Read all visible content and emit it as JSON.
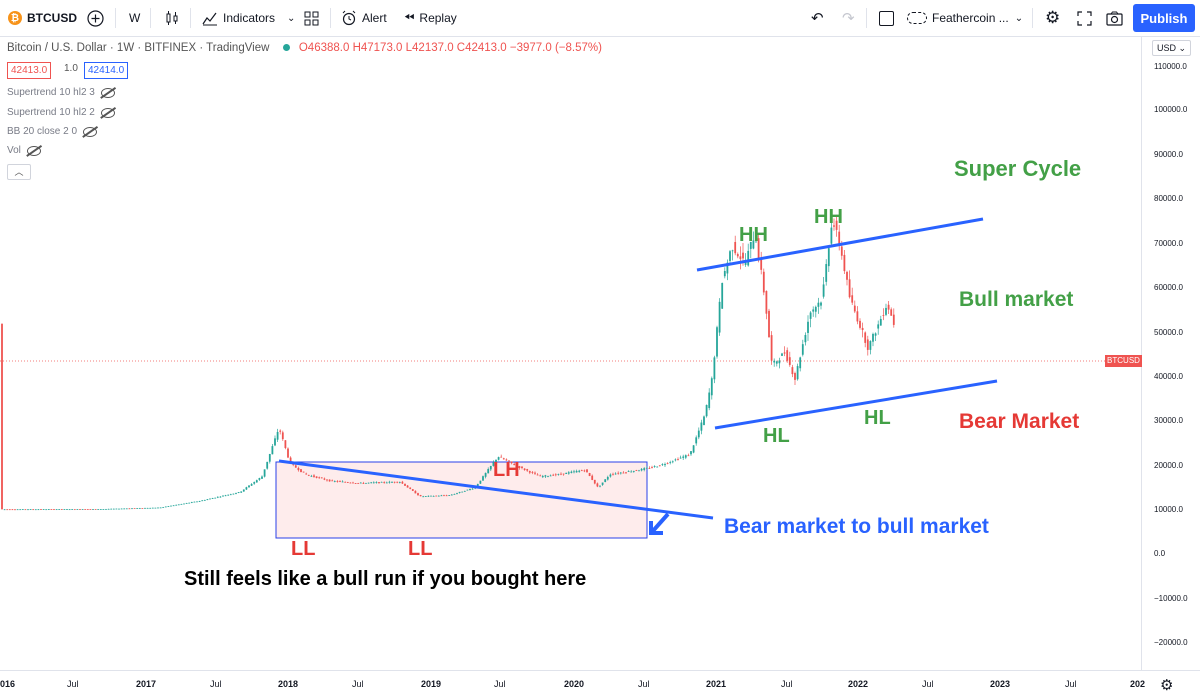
{
  "toolbar": {
    "symbol": "BTCUSD",
    "btc_glyph": "₿",
    "add_icon": "plus-circle-icon",
    "interval": "W",
    "indicators_label": "Indicators",
    "alert_label": "Alert",
    "replay_label": "Replay",
    "layout_name": "Feathercoin ...",
    "publish_label": "Publish"
  },
  "legend": {
    "title": "Bitcoin / U.S. Dollar · 1W · BITFINEX · TradingView",
    "ohlc": "O46388.0 H47173.0 L42137.0 C42413.0 −3977.0 (−8.57%)",
    "bid": "42413.0",
    "spread": "1.0",
    "ask": "42414.0"
  },
  "indicators": [
    {
      "label": "Supertrend 10 hl2 3"
    },
    {
      "label": "Supertrend 10 hl2 2"
    },
    {
      "label": "BB 20 close 2 0"
    },
    {
      "label": "Vol"
    }
  ],
  "price_axis": {
    "currency": "USD ⌄",
    "ticks": [
      "110000.0",
      "100000.0",
      "90000.0",
      "80000.0",
      "70000.0",
      "60000.0",
      "50000.0",
      "40000.0",
      "30000.0",
      "20000.0",
      "10000.0",
      "0.0",
      "−10000.0",
      "−20000.0"
    ],
    "tick_values": [
      110000,
      100000,
      90000,
      80000,
      70000,
      60000,
      50000,
      40000,
      30000,
      20000,
      10000,
      0,
      -10000,
      -20000
    ],
    "last_label": "BTCUSD",
    "last_value": 42413
  },
  "time_axis": {
    "labels": [
      "016",
      "Jul",
      "2017",
      "Jul",
      "2018",
      "Jul",
      "2019",
      "Jul",
      "2020",
      "Jul",
      "2021",
      "Jul",
      "2022",
      "Jul",
      "2023",
      "Jul",
      "202"
    ]
  },
  "annotations": {
    "super_cycle": "Super Cycle",
    "bull_market": "Bull market",
    "bear_market": "Bear Market",
    "hh1": "HH",
    "hh2": "HH",
    "hl1": "HL",
    "hl2": "HL",
    "lh": "LH",
    "ll1": "LL",
    "ll2": "LL",
    "transition": "Bear market to bull market",
    "bought_here": "Still feels like a bull run if you bought here"
  },
  "colors": {
    "up": "#26a69a",
    "down": "#ef5350",
    "trendline": "#2962ff",
    "green_text": "#43a047",
    "red_text": "#e53935",
    "accent": "#2962ff"
  }
}
